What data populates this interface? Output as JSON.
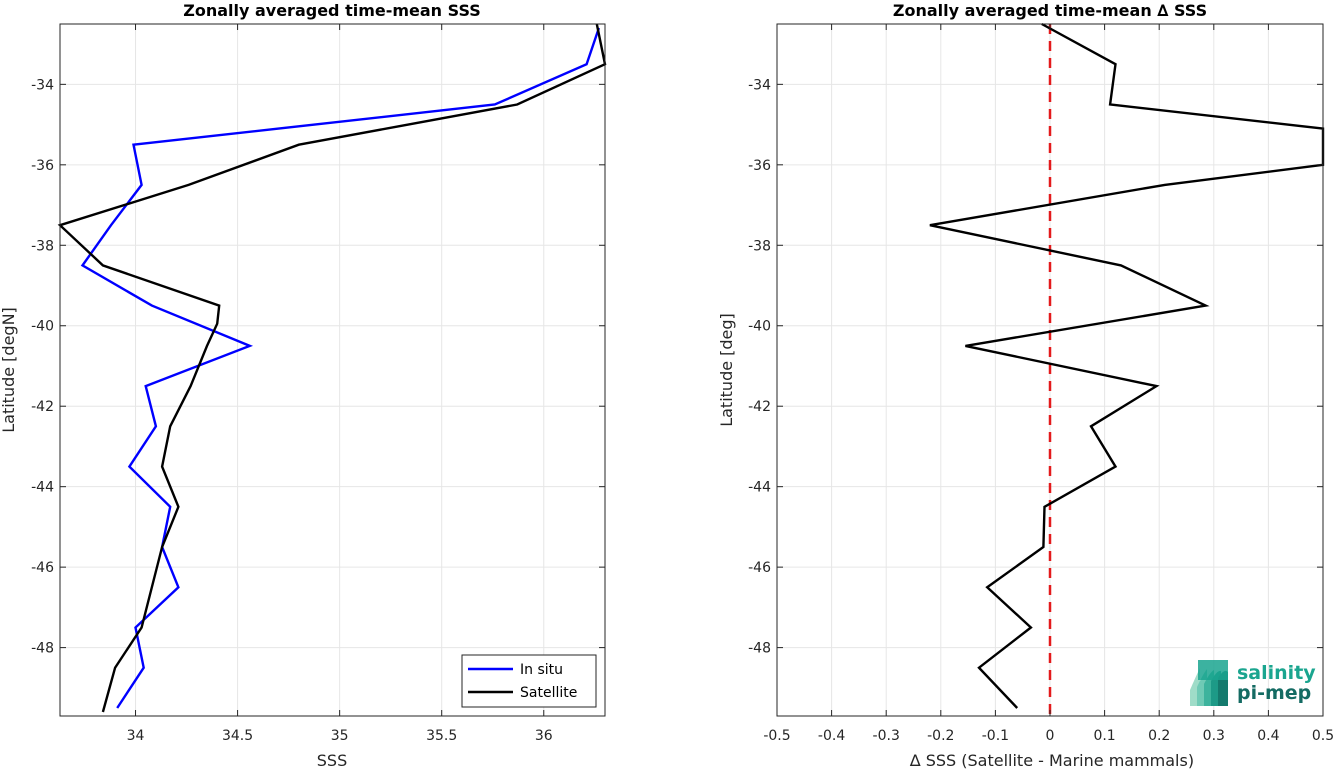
{
  "colors": {
    "in_situ": "#0000ff",
    "satellite": "#000000",
    "zero_line": "#e31a1c",
    "logo_accent": "#1aa58f"
  },
  "logo": {
    "line1": "salinity",
    "line2": "pi-mep"
  },
  "chart_data": [
    {
      "type": "line",
      "title": "Zonally averaged time-mean SSS",
      "xlabel": "SSS",
      "ylabel": "Latitude [degN]",
      "xlim": [
        33.63,
        36.3
      ],
      "ylim": [
        -49.7,
        -32.5
      ],
      "xticks": [
        34,
        34.5,
        35,
        35.5,
        36
      ],
      "xtick_labels": [
        "34",
        "34.5",
        "35",
        "35.5",
        "36"
      ],
      "yticks": [
        -34,
        -36,
        -38,
        -40,
        -42,
        -44,
        -46,
        -48
      ],
      "ytick_labels": [
        "-34",
        "-36",
        "-38",
        "-40",
        "-42",
        "-44",
        "-46",
        "-48"
      ],
      "grid": true,
      "legend_position": "bottom-right",
      "series": [
        {
          "name": "In situ",
          "color_key": "in_situ",
          "x": [
            36.27,
            36.21,
            35.76,
            33.99,
            34.03,
            33.88,
            33.74,
            34.08,
            34.56,
            34.05,
            34.1,
            33.97,
            34.17,
            34.13,
            34.21,
            34.0,
            34.04,
            33.91
          ],
          "y": [
            -32.6,
            -33.5,
            -34.5,
            -35.5,
            -36.5,
            -37.5,
            -38.5,
            -39.5,
            -40.5,
            -41.5,
            -42.5,
            -43.5,
            -44.5,
            -45.5,
            -46.5,
            -47.5,
            -48.5,
            -49.5
          ]
        },
        {
          "name": "Satellite",
          "color_key": "satellite",
          "x": [
            36.26,
            36.3,
            35.87,
            34.8,
            34.26,
            33.63,
            33.84,
            34.41,
            34.4,
            34.35,
            34.27,
            34.17,
            34.13,
            34.21,
            34.13,
            34.03,
            33.9,
            33.84
          ],
          "y": [
            -32.5,
            -33.5,
            -34.5,
            -35.5,
            -36.5,
            -37.5,
            -38.5,
            -39.5,
            -39.95,
            -40.5,
            -41.5,
            -42.5,
            -43.5,
            -44.5,
            -45.5,
            -47.5,
            -48.5,
            -49.6
          ]
        }
      ]
    },
    {
      "type": "line",
      "title": "Zonally averaged time-mean ∆ SSS",
      "xlabel": "∆ SSS (Satellite - Marine mammals)",
      "ylabel": "Latitude [deg]",
      "xlim": [
        -0.5,
        0.5
      ],
      "ylim": [
        -49.7,
        -32.5
      ],
      "xticks": [
        -0.5,
        -0.4,
        -0.3,
        -0.2,
        -0.1,
        0,
        0.1,
        0.2,
        0.3,
        0.4,
        0.5
      ],
      "xtick_labels": [
        "-0.5",
        "-0.4",
        "-0.3",
        "-0.2",
        "-0.1",
        "0",
        "0.1",
        "0.2",
        "0.3",
        "0.4",
        "0.5"
      ],
      "yticks": [
        -34,
        -36,
        -38,
        -40,
        -42,
        -44,
        -46,
        -48
      ],
      "ytick_labels": [
        "-34",
        "-36",
        "-38",
        "-40",
        "-42",
        "-44",
        "-46",
        "-48"
      ],
      "grid": true,
      "reference_line": {
        "x": 0,
        "style": "dashed",
        "color_key": "zero_line"
      },
      "series": [
        {
          "color_key": "satellite",
          "x": [
            -0.015,
            0.12,
            0.11,
            0.5,
            0.5,
            0.21,
            -0.22,
            0.13,
            0.285,
            -0.155,
            0.195,
            0.075,
            0.12,
            -0.01,
            -0.012,
            -0.115,
            -0.035,
            -0.13,
            -0.06
          ],
          "y": [
            -32.5,
            -33.5,
            -34.5,
            -35.1,
            -36.0,
            -36.5,
            -37.5,
            -38.5,
            -39.5,
            -40.5,
            -41.5,
            -42.5,
            -43.5,
            -44.5,
            -45.5,
            -46.5,
            -47.5,
            -48.5,
            -49.5
          ]
        }
      ]
    }
  ]
}
